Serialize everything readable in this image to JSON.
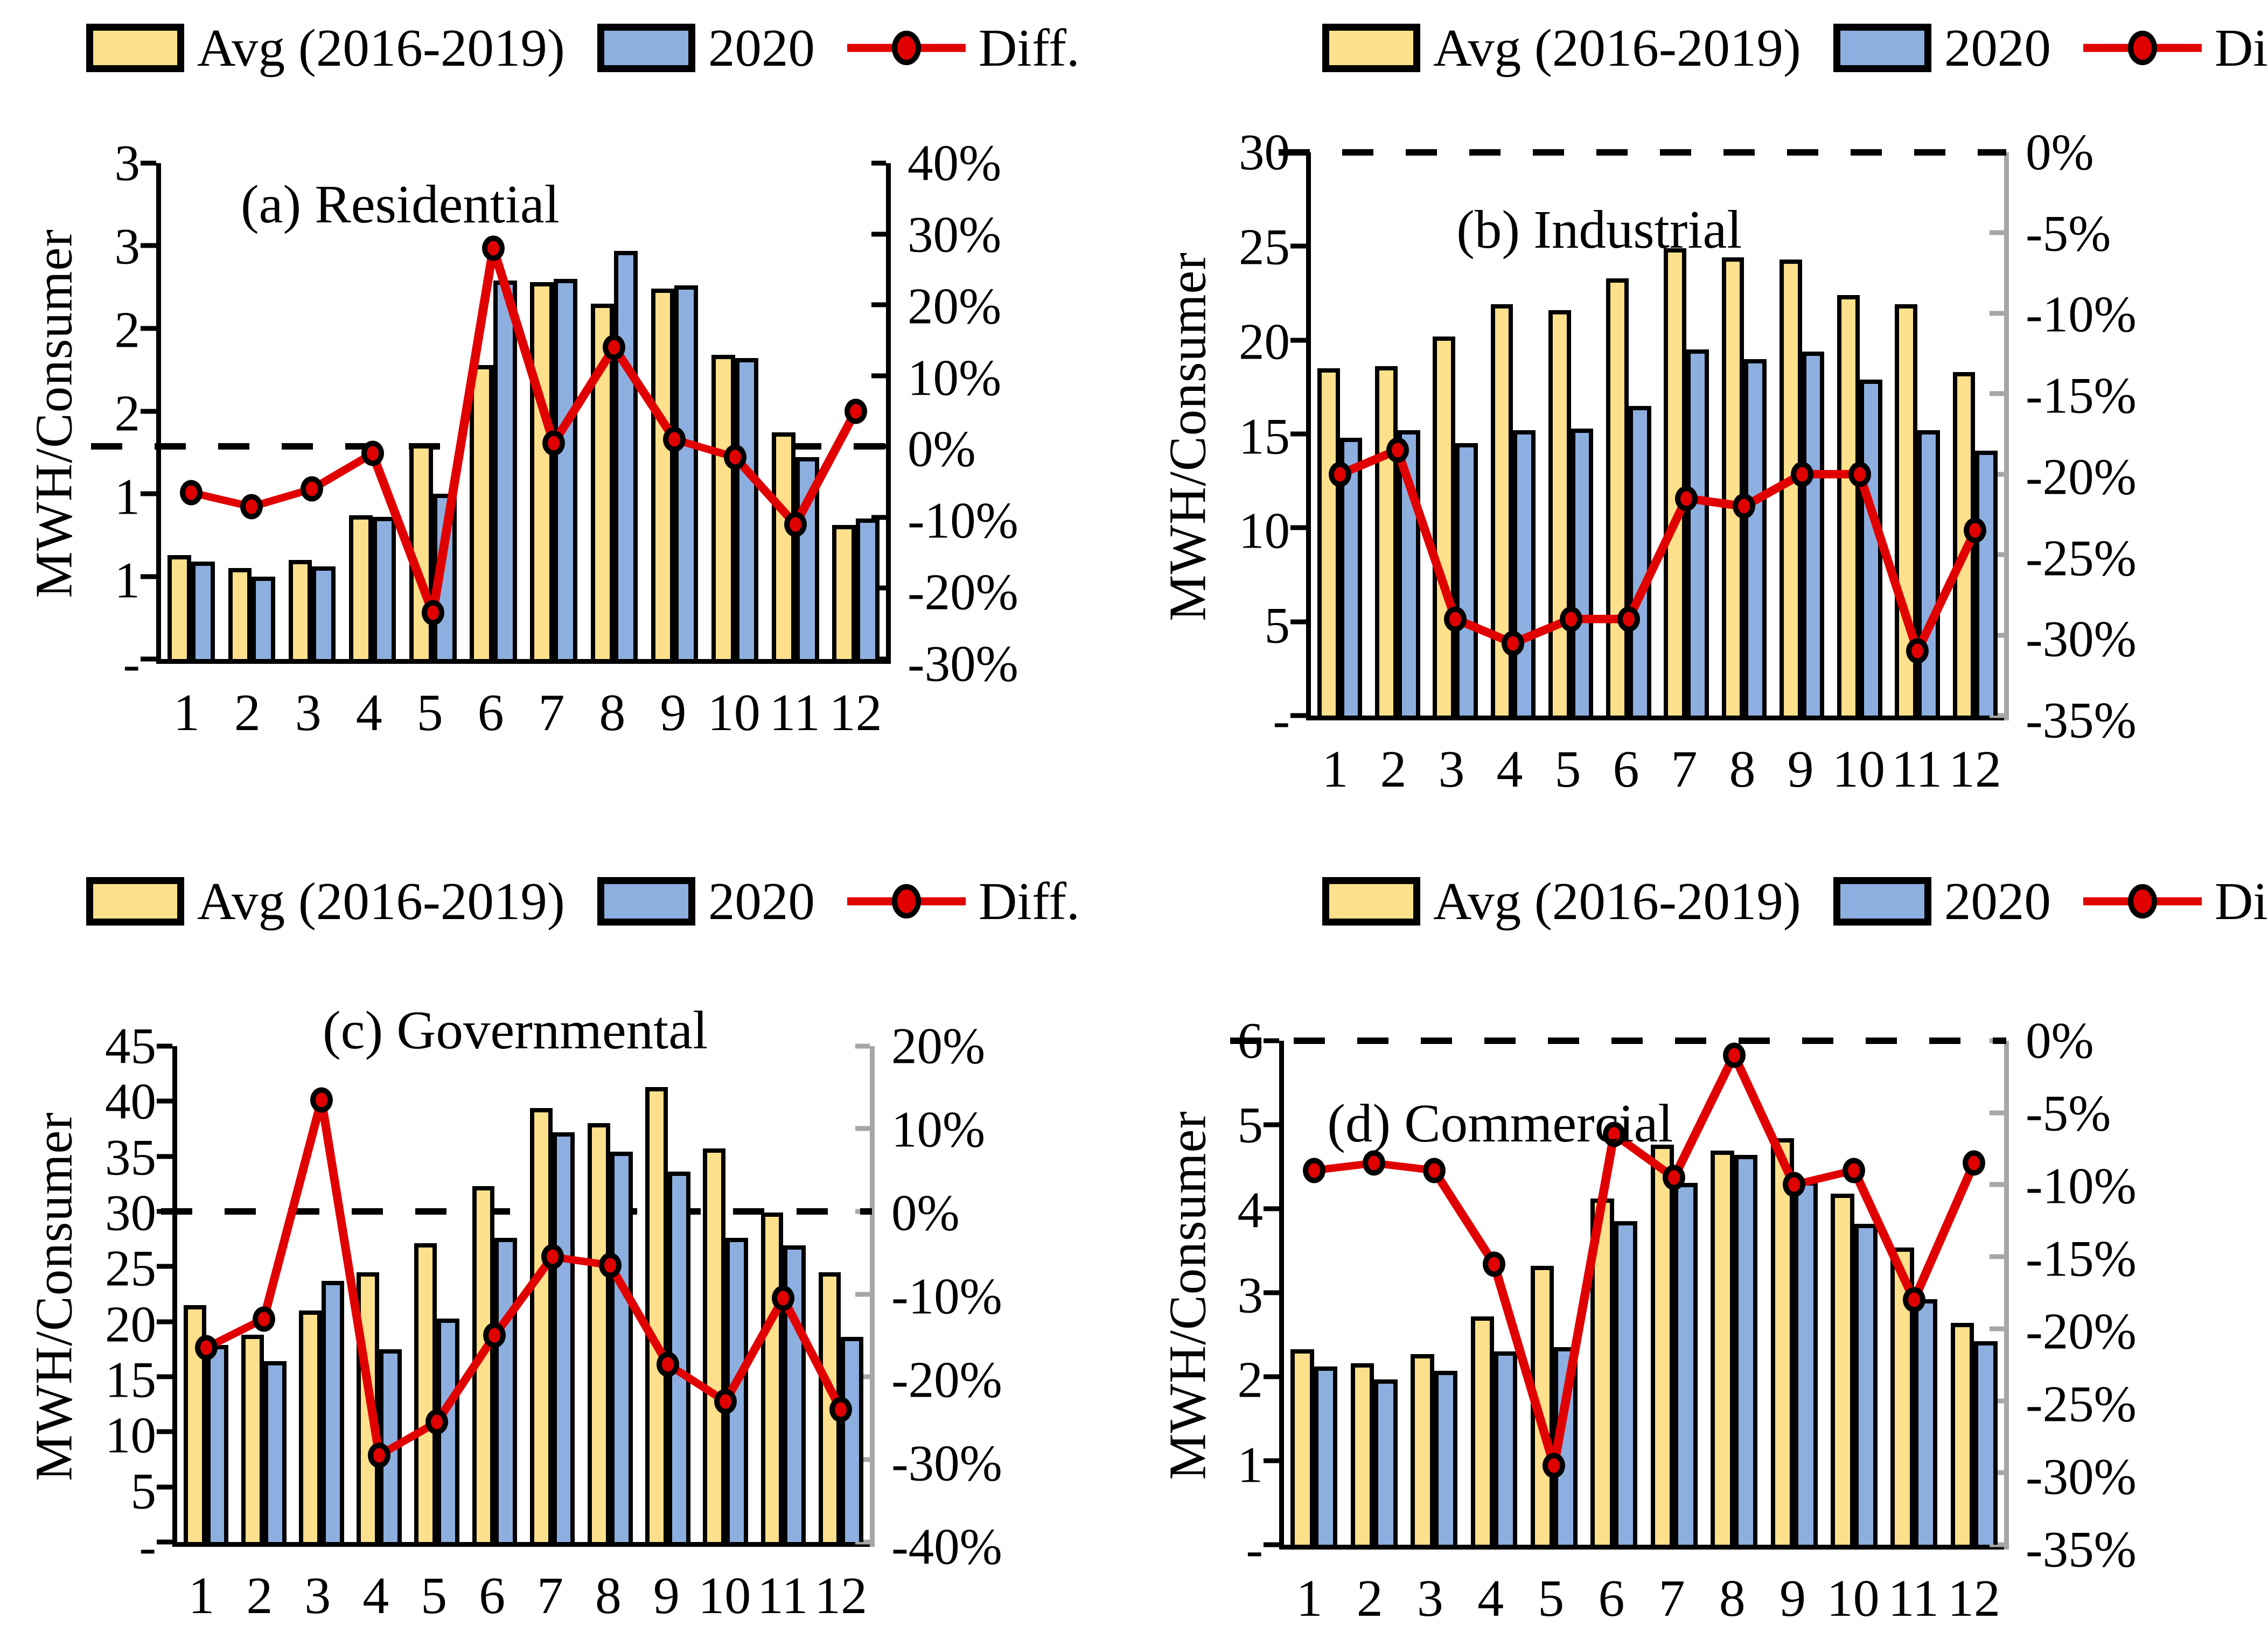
{
  "legend": {
    "avg": "Avg (2016-2019)",
    "y2020": "2020",
    "diff": "Diff."
  },
  "y_axis_title": "MWH/Consumer",
  "colors": {
    "avg_fill": "#FCE08C",
    "y2020_fill": "#8DAFDF",
    "diff_line": "#E10000",
    "axis_black": "#000000",
    "axis_grey": "#A6A6A6"
  },
  "chart_data": [
    {
      "id": "residential",
      "type": "bar+line",
      "title": "(a) Residential",
      "categories": [
        "1",
        "2",
        "3",
        "4",
        "5",
        "6",
        "7",
        "8",
        "9",
        "10",
        "11",
        "12"
      ],
      "series": [
        {
          "name": "Avg (2016-2019)",
          "values": [
            0.63,
            0.55,
            0.6,
            0.87,
            1.3,
            1.78,
            2.28,
            2.15,
            2.24,
            1.84,
            1.37,
            0.81
          ]
        },
        {
          "name": "2020",
          "values": [
            0.59,
            0.5,
            0.56,
            0.86,
            1.0,
            2.29,
            2.3,
            2.47,
            2.26,
            1.82,
            1.22,
            0.85
          ]
        },
        {
          "name": "Diff. (%)",
          "values": [
            -6.5,
            -8.5,
            -6,
            -1,
            -23.5,
            28,
            0.5,
            14,
            1,
            -1.5,
            -11,
            5
          ]
        }
      ],
      "left_axis": {
        "title": "MWH/Consumer",
        "min": 0,
        "max": 3,
        "tick_labels": [
          "3",
          "3",
          "2",
          "2",
          "1",
          "1",
          "-"
        ]
      },
      "right_axis": {
        "min": -30,
        "max": 40,
        "axis_color": "#000000",
        "tick_labels": [
          "40%",
          "30%",
          "20%",
          "10%",
          "0%",
          "-10%",
          "-20%",
          "-30%"
        ]
      },
      "zero_dashed_line": true,
      "legend_position": "top"
    },
    {
      "id": "industrial",
      "type": "bar+line",
      "title": "(b) Industrial",
      "categories": [
        "1",
        "2",
        "3",
        "4",
        "5",
        "6",
        "7",
        "8",
        "9",
        "10",
        "11",
        "12"
      ],
      "series": [
        {
          "name": "Avg (2016-2019)",
          "values": [
            18.5,
            18.6,
            20.2,
            21.9,
            21.6,
            23.3,
            24.9,
            24.4,
            24.3,
            22.4,
            21.9,
            18.3
          ]
        },
        {
          "name": "2020",
          "values": [
            14.8,
            15.2,
            14.5,
            15.2,
            15.3,
            16.5,
            19.5,
            19.0,
            19.4,
            17.9,
            15.2,
            14.1
          ]
        },
        {
          "name": "Diff. (%)",
          "values": [
            -20,
            -18.5,
            -29,
            -30.5,
            -29,
            -29,
            -21.5,
            -22,
            -20,
            -20,
            -31,
            -23.5
          ]
        }
      ],
      "left_axis": {
        "title": "MWH/Consumer",
        "min": 0,
        "max": 30,
        "tick_labels": [
          "30",
          "25",
          "20",
          "15",
          "10",
          "5",
          "-"
        ]
      },
      "right_axis": {
        "min": -35,
        "max": 0,
        "axis_color": "#A6A6A6",
        "tick_labels": [
          "0%",
          "-5%",
          "-10%",
          "-15%",
          "-20%",
          "-25%",
          "-30%",
          "-35%"
        ]
      },
      "zero_dashed_line": true,
      "legend_position": "top"
    },
    {
      "id": "governmental",
      "type": "bar+line",
      "title": "(c) Governmental",
      "categories": [
        "1",
        "2",
        "3",
        "4",
        "5",
        "6",
        "7",
        "8",
        "9",
        "10",
        "11",
        "12"
      ],
      "series": [
        {
          "name": "Avg (2016-2019)",
          "values": [
            21.5,
            18.8,
            21.0,
            24.5,
            27.1,
            32.3,
            39.4,
            38.0,
            41.3,
            35.7,
            29.9,
            24.5
          ]
        },
        {
          "name": "2020",
          "values": [
            17.9,
            16.4,
            23.7,
            17.5,
            20.3,
            27.6,
            37.2,
            35.4,
            33.6,
            27.6,
            26.9,
            18.6
          ]
        },
        {
          "name": "Diff. (%)",
          "values": [
            -16.5,
            -13,
            13.5,
            -29.5,
            -25.5,
            -15,
            -5.5,
            -6.5,
            -18.5,
            -23,
            -10.5,
            -24
          ]
        }
      ],
      "left_axis": {
        "title": "MWH/Consumer",
        "min": 0,
        "max": 45,
        "tick_labels": [
          "45",
          "40",
          "35",
          "30",
          "25",
          "20",
          "15",
          "10",
          "5",
          "-"
        ]
      },
      "right_axis": {
        "min": -40,
        "max": 20,
        "axis_color": "#A6A6A6",
        "tick_labels": [
          "20%",
          "10%",
          "0%",
          "-10%",
          "-20%",
          "-30%",
          "-40%"
        ]
      },
      "zero_dashed_line": true,
      "legend_position": "top"
    },
    {
      "id": "commercial",
      "type": "bar+line",
      "title": "(d) Commercial",
      "categories": [
        "1",
        "2",
        "3",
        "4",
        "5",
        "6",
        "7",
        "8",
        "9",
        "10",
        "11",
        "12"
      ],
      "series": [
        {
          "name": "Avg (2016-2019)",
          "values": [
            2.33,
            2.16,
            2.27,
            2.72,
            3.32,
            4.12,
            4.76,
            4.69,
            4.84,
            4.18,
            3.54,
            2.64
          ]
        },
        {
          "name": "2020",
          "values": [
            2.12,
            1.97,
            2.07,
            2.3,
            2.35,
            3.85,
            4.31,
            4.64,
            4.33,
            3.82,
            2.92,
            2.42
          ]
        },
        {
          "name": "Diff. (%)",
          "values": [
            -9,
            -8.5,
            -9,
            -15.5,
            -29.5,
            -6.5,
            -9.5,
            -1,
            -10,
            -9,
            -18,
            -8.5
          ]
        }
      ],
      "left_axis": {
        "title": "MWH/Consumer",
        "min": 0,
        "max": 6,
        "tick_labels": [
          "6",
          "5",
          "4",
          "3",
          "2",
          "1",
          "-"
        ]
      },
      "right_axis": {
        "min": -35,
        "max": 0,
        "axis_color": "#A6A6A6",
        "tick_labels": [
          "0%",
          "-5%",
          "-10%",
          "-15%",
          "-20%",
          "-25%",
          "-30%",
          "-35%"
        ]
      },
      "zero_dashed_line": true,
      "legend_position": "top"
    }
  ]
}
